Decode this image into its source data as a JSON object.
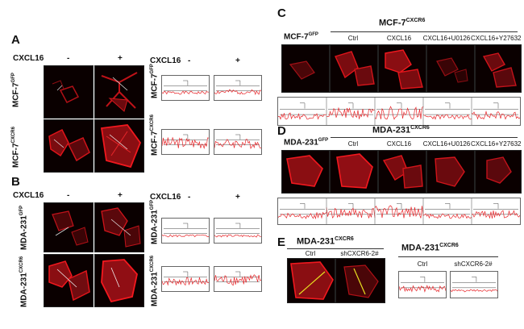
{
  "panels": {
    "A": {
      "label": "A",
      "treat": "CXCL16",
      "minus": "-",
      "plus": "+",
      "row1": "MCF-7",
      "row1_sup": "GFP",
      "row2": "MCF-7",
      "row2_sup": "CXCR6"
    },
    "B": {
      "label": "B",
      "treat": "CXCL16",
      "minus": "-",
      "plus": "+",
      "row1": "MDA-231",
      "row1_sup": "GFP",
      "row2": "MDA-231",
      "row2_sup": "CXCR6"
    },
    "C": {
      "label": "C",
      "group": "MCF-7",
      "group_sup": "CXCR6",
      "first": "MCF-7",
      "first_sup": "GFP",
      "cols": [
        "Ctrl",
        "CXCL16",
        "CXCL16+U0126",
        "CXCL16+Y27632"
      ]
    },
    "D": {
      "label": "D",
      "group": "MDA-231",
      "group_sup": "CXCR6",
      "first": "MDA-231",
      "first_sup": "GFP",
      "cols": [
        "Ctrl",
        "CXCL16",
        "CXCL16+U0126",
        "CXCL16+Y27632"
      ]
    },
    "E": {
      "label": "E",
      "group": "MDA-231",
      "group_sup": "CXCR6",
      "cols": [
        "Ctrl",
        "shCXCR6-2#"
      ],
      "group2": "MDA-231",
      "group2_sup": "CXCR6",
      "cols2": [
        "Ctrl",
        "shCXCR6-2#"
      ]
    }
  },
  "colors": {
    "cell": "#e0141a",
    "trace": "#e8262a",
    "bg": "#0a0000"
  }
}
